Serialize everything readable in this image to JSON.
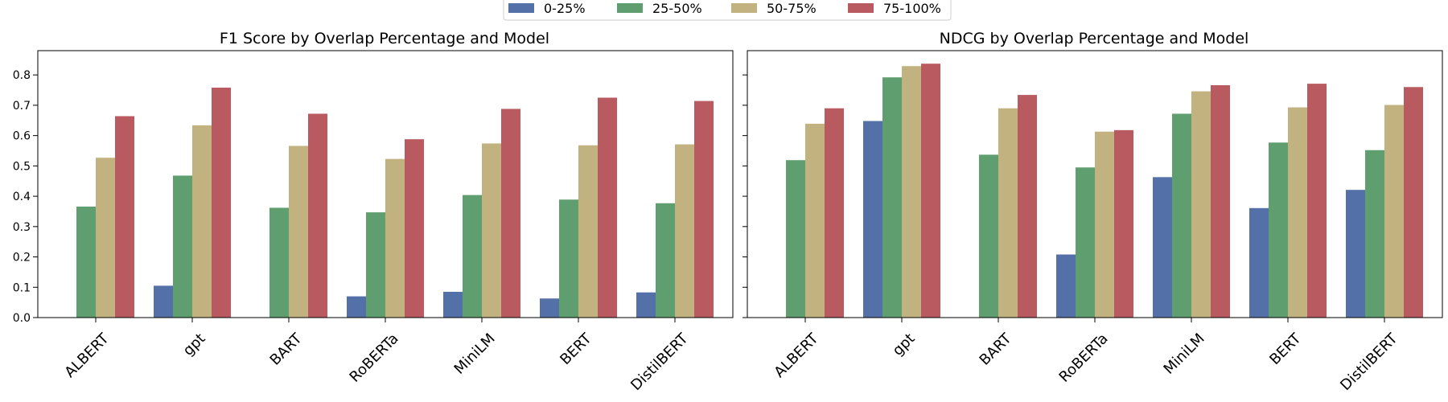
{
  "legend": {
    "placement": "top-center",
    "items": [
      {
        "label": "0-25%",
        "color": "#5470a8"
      },
      {
        "label": "25-50%",
        "color": "#5f9e6e"
      },
      {
        "label": "50-75%",
        "color": "#c2b280"
      },
      {
        "label": "75-100%",
        "color": "#b85a5f"
      }
    ]
  },
  "chart_data": [
    {
      "type": "bar",
      "title": "F1 Score by Overlap Percentage and Model",
      "xlabel": "",
      "ylabel": "",
      "ylim": [
        0,
        0.88
      ],
      "yticks": [
        "0.0",
        "0.1",
        "0.2",
        "0.3",
        "0.4",
        "0.5",
        "0.6",
        "0.7",
        "0.8"
      ],
      "grid": false,
      "categories": [
        "ALBERT",
        "gpt",
        "BART",
        "RoBERTa",
        "MiniLM",
        "BERT",
        "DistilBERT"
      ],
      "series": [
        {
          "name": "0-25%",
          "values": [
            0,
            0.105,
            0,
            0.07,
            0.085,
            0.063,
            0.083
          ]
        },
        {
          "name": "25-50%",
          "values": [
            0.366,
            0.468,
            0.362,
            0.347,
            0.404,
            0.389,
            0.377
          ]
        },
        {
          "name": "50-75%",
          "values": [
            0.527,
            0.634,
            0.566,
            0.523,
            0.574,
            0.568,
            0.571
          ]
        },
        {
          "name": "75-100%",
          "values": [
            0.664,
            0.758,
            0.672,
            0.588,
            0.688,
            0.725,
            0.714
          ]
        }
      ]
    },
    {
      "type": "bar",
      "title": "NDCG by Overlap Percentage and Model",
      "xlabel": "",
      "ylabel": "",
      "ylim": [
        0,
        0.88
      ],
      "yticks": [],
      "grid": false,
      "categories": [
        "ALBERT",
        "gpt",
        "BART",
        "RoBERTa",
        "MiniLM",
        "BERT",
        "DistilBERT"
      ],
      "series": [
        {
          "name": "0-25%",
          "values": [
            0,
            0.648,
            0,
            0.208,
            0.463,
            0.361,
            0.421
          ]
        },
        {
          "name": "25-50%",
          "values": [
            0.519,
            0.792,
            0.537,
            0.495,
            0.672,
            0.577,
            0.552
          ]
        },
        {
          "name": "50-75%",
          "values": [
            0.639,
            0.829,
            0.69,
            0.613,
            0.746,
            0.693,
            0.701
          ]
        },
        {
          "name": "75-100%",
          "values": [
            0.69,
            0.837,
            0.734,
            0.618,
            0.766,
            0.771,
            0.76
          ]
        }
      ]
    }
  ]
}
